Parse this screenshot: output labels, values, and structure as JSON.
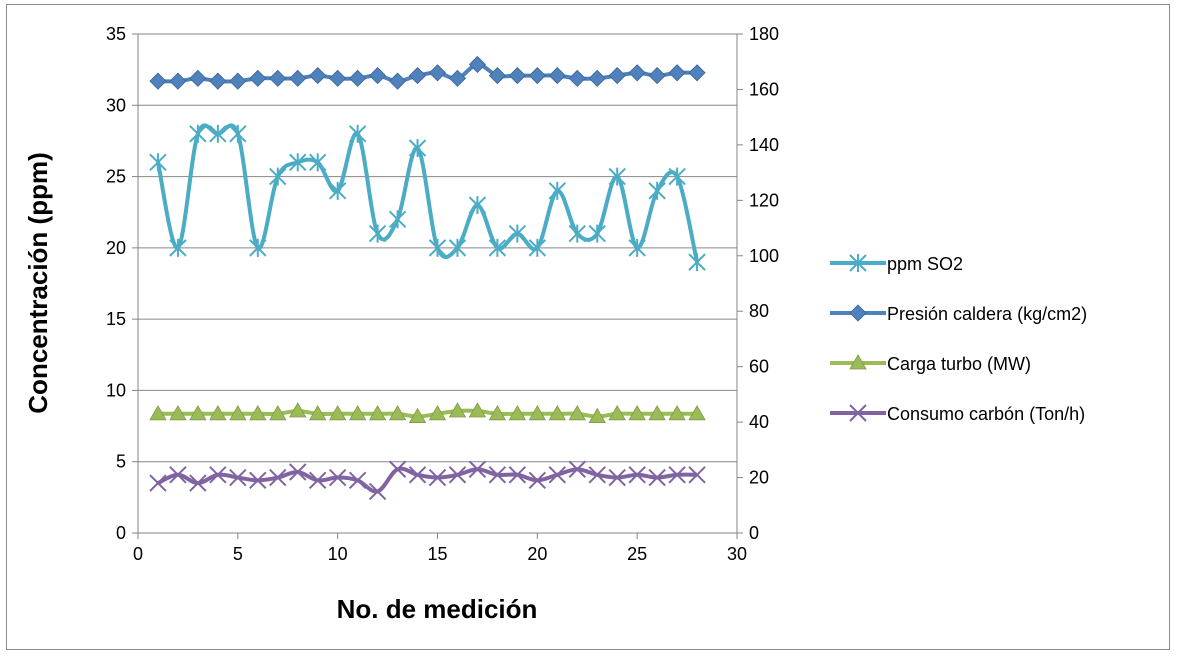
{
  "chart_data": {
    "type": "line",
    "xlabel": "No. de medición",
    "ylabel": "Concentración (ppm)",
    "xlim": [
      0,
      30
    ],
    "xticks": [
      0,
      5,
      10,
      15,
      20,
      25,
      30
    ],
    "ylim": [
      0,
      35
    ],
    "yticks": [
      0,
      5,
      10,
      15,
      20,
      25,
      30,
      35
    ],
    "y2lim": [
      0,
      180
    ],
    "y2ticks": [
      0,
      20,
      40,
      60,
      80,
      100,
      120,
      140,
      160,
      180
    ],
    "grid": "horizontal",
    "legend_position": "right",
    "x": [
      1,
      2,
      3,
      4,
      5,
      6,
      7,
      8,
      9,
      10,
      11,
      12,
      13,
      14,
      15,
      16,
      17,
      18,
      19,
      20,
      21,
      22,
      23,
      24,
      25,
      26,
      27,
      28
    ],
    "series": [
      {
        "name": "ppm SO2",
        "axis": "left",
        "marker": "asterisk",
        "color": "#4bacc6",
        "values": [
          26,
          20,
          28,
          28,
          28,
          20,
          25,
          26,
          26,
          24,
          28,
          21,
          22,
          27,
          20,
          20,
          23,
          20,
          21,
          20,
          24,
          21,
          21,
          25,
          20,
          24,
          25,
          19
        ]
      },
      {
        "name": "Presión caldera (kg/cm2)",
        "axis": "right",
        "marker": "diamond",
        "color": "#4f81bd",
        "values": [
          163,
          163,
          164,
          163,
          163,
          164,
          164,
          164,
          165,
          164,
          164,
          165,
          163,
          165,
          166,
          164,
          169,
          165,
          165,
          165,
          165,
          164,
          164,
          165,
          166,
          165,
          166,
          166
        ]
      },
      {
        "name": "Carga turbo (MW)",
        "axis": "right",
        "marker": "triangle",
        "color": "#9bbb59",
        "values": [
          43,
          43,
          43,
          43,
          43,
          43,
          43,
          44,
          43,
          43,
          43,
          43,
          43,
          42,
          43,
          44,
          44,
          43,
          43,
          43,
          43,
          43,
          42,
          43,
          43,
          43,
          43,
          43
        ]
      },
      {
        "name": "Consumo carbón (Ton/h)",
        "axis": "right",
        "marker": "x",
        "color": "#8064a2",
        "values": [
          18,
          21,
          18,
          21,
          20,
          19,
          20,
          22,
          19,
          20,
          19,
          15,
          23,
          21,
          20,
          21,
          23,
          21,
          21,
          19,
          21,
          23,
          21,
          20,
          21,
          20,
          21,
          21
        ]
      }
    ]
  }
}
